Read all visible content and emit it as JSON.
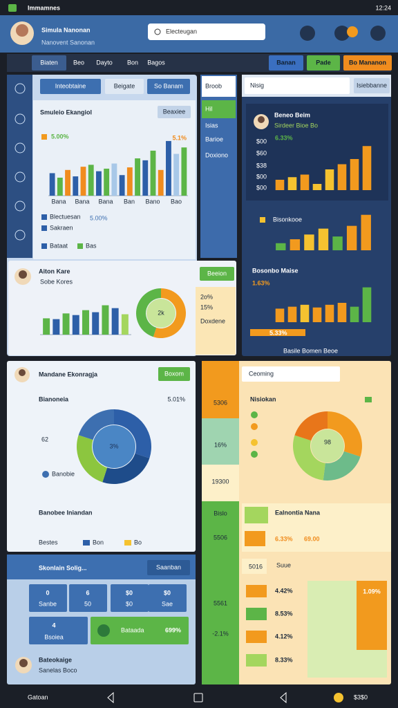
{
  "status_bar": {
    "title": "Immamnes",
    "time": "12:24"
  },
  "header": {
    "title": "Simula Nanonan",
    "subtitle": "Nanovent Sanonan",
    "search": "Electeugan"
  },
  "nav": {
    "tabs": [
      "Biaten",
      "Beo",
      "Dayto",
      "Bon",
      "Bagos"
    ],
    "buttons": [
      "Banan",
      "Pade",
      "Bo Mananon"
    ]
  },
  "left_panel": {
    "buttons": [
      "Inteobtaine",
      "Beigate",
      "So Banam"
    ],
    "chart": {
      "title": "Smuleio Ekangiol",
      "button": "Beaxiee",
      "label": "5.00%",
      "label_right": "5.1%",
      "ylim": [
        0,
        100
      ],
      "values": [
        35,
        28,
        40,
        30,
        45,
        48,
        38,
        42,
        50,
        32,
        44,
        58,
        55,
        70,
        40,
        85,
        65,
        75
      ],
      "colors": [
        "#2d5fa8",
        "#5cb547",
        "#f08c1e",
        "#2d5fa8",
        "#f08c1e",
        "#5cb547",
        "#2d5fa8",
        "#5cb547",
        "#a8c8e8",
        "#2d5fa8",
        "#f08c1e",
        "#5cb547",
        "#2d5fa8",
        "#5cb547",
        "#f08c1e",
        "#2d5fa8",
        "#a8c8e8",
        "#5cb547"
      ],
      "x_labels": [
        "Bana",
        "Bana",
        "Bana",
        "Ban",
        "Bano",
        "Bao"
      ]
    },
    "legend": [
      {
        "name": "Blectuesan",
        "value": "5.00%"
      },
      {
        "name": "Sakraen"
      },
      {
        "name": "Bataat",
        "value": "Bas"
      }
    ],
    "card": {
      "title": "Aiton Kare",
      "subtitle": "Sobe Kores",
      "button": "Beeion",
      "ylim": [
        0,
        100
      ],
      "values": [
        40,
        38,
        52,
        48,
        60,
        55,
        72,
        65,
        50
      ],
      "colors": [
        "#5cb547",
        "#2d5fa8",
        "#5cb547",
        "#2d5fa8",
        "#5cb547",
        "#2d5fa8",
        "#5cb547",
        "#2d5fa8",
        "#a4d65e"
      ],
      "donut": {
        "center": "2k",
        "values": [
          55,
          45
        ],
        "colors": [
          "#f29a1e",
          "#5cb547"
        ]
      },
      "side": [
        "2o%",
        "15%",
        "Doxdene"
      ]
    }
  },
  "middle_column": {
    "items": [
      "Broob",
      "Hil",
      "Isias",
      "Barioe",
      "Doxiono"
    ]
  },
  "right_panel": {
    "search": "Nisig",
    "button": "Isiebbanne",
    "chart1": {
      "title": "Beneo Beim",
      "subtitle": "Sirdeer Bioe Bo",
      "label": "6.33%",
      "tick_labels": [
        "$00",
        "$60",
        "$38",
        "$00",
        "$00"
      ],
      "ylim": [
        0,
        100
      ],
      "values": [
        20,
        25,
        30,
        12,
        40,
        50,
        60,
        85
      ],
      "colors": [
        "#f29a1e",
        "#f5c230",
        "#f29a1e",
        "#f5c230",
        "#f5c230",
        "#f29a1e",
        "#f29a1e",
        "#f29a1e"
      ]
    },
    "chart2": {
      "label": "Bisonkooe",
      "ylim": [
        0,
        100
      ],
      "values": [
        18,
        28,
        40,
        55,
        35,
        62,
        90
      ],
      "colors": [
        "#5cb547",
        "#f29a1e",
        "#f5c230",
        "#f5c230",
        "#5cb547",
        "#f29a1e",
        "#f29a1e"
      ]
    },
    "chart3": {
      "title": "Bosonbo Maise",
      "label": "1.63%",
      "ylim": [
        0,
        100
      ],
      "values": [
        35,
        40,
        45,
        38,
        45,
        50,
        40,
        90
      ],
      "colors": [
        "#f29a1e",
        "#f29a1e",
        "#f5c230",
        "#f29a1e",
        "#f29a1e",
        "#f29a1e",
        "#5cb547",
        "#5cb547"
      ]
    },
    "footer_label": "5.33%",
    "footer": "Basile Bomen Beoe"
  },
  "donut_card": {
    "title": "Mandane Ekonragja",
    "button": "Boxom",
    "label": "Bianoneia",
    "value": "5.01%",
    "side": [
      "62",
      "Banobie"
    ],
    "center": "3%",
    "values": [
      30,
      25,
      25,
      20
    ],
    "colors": [
      "#2d5fa8",
      "#1e4c8a",
      "#8cc63f",
      "#3d6fb0"
    ],
    "footer": "Banobee Iniandan",
    "legend": [
      "Bestes",
      "Bon",
      "Bo"
    ]
  },
  "tiles_card": {
    "title": "Skonlain Solig...",
    "button": "Saanban",
    "tiles": [
      {
        "value": "0",
        "label": "Sanbe"
      },
      {
        "value": "6",
        "label": "50"
      },
      {
        "value": "$0",
        "label": "$0"
      },
      {
        "value": "$0",
        "label": "Sae"
      }
    ],
    "tile_big": {
      "value": "4",
      "label": "Bsoiea"
    },
    "green_tile": {
      "label": "Bataada",
      "value": "699%"
    },
    "user": {
      "name": "Bateokaige",
      "subtitle": "Sanelas Boco"
    }
  },
  "right_lower": {
    "column": [
      "5306",
      "16%",
      "19300",
      "Bislo",
      "5506",
      "5561",
      "-2.1%"
    ],
    "tab": "Ceoming",
    "title": "Nisiokan",
    "center": "98",
    "values": [
      30,
      22,
      28,
      20
    ],
    "colors": [
      "#f29a1e",
      "#6dbb8a",
      "#a4d65e",
      "#e8761a"
    ],
    "banner": {
      "title": "Ealnontia Nana",
      "value": "6.33%",
      "value2": "69.00"
    },
    "row": [
      "5016",
      "Suue"
    ],
    "list": [
      "4.42%",
      "8.53%",
      "4.12%",
      "8.33%"
    ],
    "badge": "1.09%"
  },
  "bottom_nav": {
    "left": "Gatoan",
    "right": "$3$0"
  }
}
